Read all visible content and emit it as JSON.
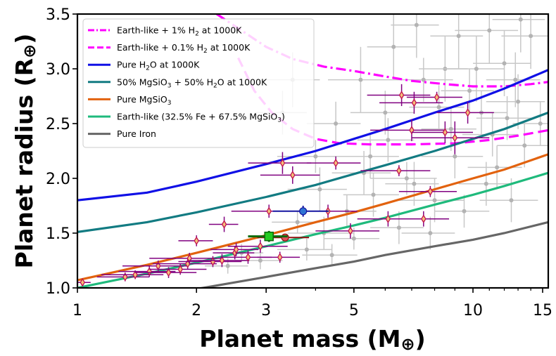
{
  "chart_data": {
    "type": "scatter",
    "xlabel": "Planet mass (M",
    "xlabel_symbol": "⊕",
    "xlabel_close": ")",
    "ylabel": "Planet radius (R",
    "ylabel_symbol": "⊕",
    "ylabel_close": ")",
    "xscale": "log",
    "xlim": [
      1.0,
      15.5
    ],
    "ylim": [
      1.0,
      3.5
    ],
    "xticks": [
      {
        "v": 1,
        "label": "1"
      },
      {
        "v": 2,
        "label": "2"
      },
      {
        "v": 3,
        "label": "3"
      },
      {
        "v": 5,
        "label": "5"
      },
      {
        "v": 10,
        "label": "10"
      },
      {
        "v": 15,
        "label": "15"
      }
    ],
    "yticks": [
      {
        "v": 1.0,
        "label": "1.0"
      },
      {
        "v": 1.5,
        "label": "1.5"
      },
      {
        "v": 2.0,
        "label": "2.0"
      },
      {
        "v": 2.5,
        "label": "2.5"
      },
      {
        "v": 3.0,
        "label": "3.0"
      },
      {
        "v": 3.5,
        "label": "3.5"
      }
    ],
    "legend_position": "top-left",
    "curves": [
      {
        "name": "Earth-like + 1% H2 at 1000K",
        "label_parts": [
          "Earth-like + 1% H",
          "2",
          " at 1000K"
        ],
        "color": "#ff00ff",
        "dash": "dashdot",
        "points": [
          [
            2.25,
            3.5
          ],
          [
            2.6,
            3.35
          ],
          [
            3.0,
            3.2
          ],
          [
            3.5,
            3.09
          ],
          [
            4.2,
            3.02
          ],
          [
            5.0,
            2.98
          ],
          [
            6.0,
            2.93
          ],
          [
            7.0,
            2.89
          ],
          [
            8.5,
            2.86
          ],
          [
            10.0,
            2.84
          ],
          [
            12.0,
            2.84
          ],
          [
            14.0,
            2.86
          ],
          [
            15.5,
            2.88
          ]
        ]
      },
      {
        "name": "Earth-like + 0.1% H2 at 1000K",
        "label_parts": [
          "Earth-like + 0.1% H",
          "2",
          " at 1000K"
        ],
        "color": "#ff00ff",
        "dash": "dashed",
        "points": [
          [
            2.55,
            3.1
          ],
          [
            2.8,
            2.8
          ],
          [
            3.1,
            2.6
          ],
          [
            3.5,
            2.45
          ],
          [
            4.0,
            2.36
          ],
          [
            4.6,
            2.32
          ],
          [
            5.5,
            2.31
          ],
          [
            7.0,
            2.31
          ],
          [
            9.0,
            2.32
          ],
          [
            11.0,
            2.35
          ],
          [
            13.0,
            2.39
          ],
          [
            15.5,
            2.44
          ]
        ]
      },
      {
        "name": "Pure H2O at 1000K",
        "label_parts": [
          "Pure H",
          "2",
          "O at 1000K"
        ],
        "color": "#1010e6",
        "dash": "solid",
        "points": [
          [
            1.0,
            1.8
          ],
          [
            1.5,
            1.87
          ],
          [
            2.0,
            1.97
          ],
          [
            3.0,
            2.13
          ],
          [
            4.0,
            2.25
          ],
          [
            5.0,
            2.36
          ],
          [
            6.0,
            2.45
          ],
          [
            8.0,
            2.6
          ],
          [
            10.0,
            2.71
          ],
          [
            12.0,
            2.82
          ],
          [
            15.5,
            2.99
          ]
        ]
      },
      {
        "name": "50% MgSiO3 + 50% H2O at 1000K",
        "label_parts": [
          "50% MgSiO",
          "3",
          " + 50% H",
          "2",
          "O at 1000K"
        ],
        "color": "#127b82",
        "dash": "solid",
        "points": [
          [
            1.0,
            1.51
          ],
          [
            1.5,
            1.6
          ],
          [
            2.0,
            1.69
          ],
          [
            3.0,
            1.83
          ],
          [
            4.0,
            1.94
          ],
          [
            5.0,
            2.04
          ],
          [
            6.0,
            2.12
          ],
          [
            8.0,
            2.25
          ],
          [
            10.0,
            2.36
          ],
          [
            12.0,
            2.45
          ],
          [
            15.5,
            2.6
          ]
        ]
      },
      {
        "name": "Pure MgSiO3",
        "label_parts": [
          "Pure MgSiO",
          "3"
        ],
        "color": "#e2620e",
        "dash": "solid",
        "points": [
          [
            1.0,
            1.07
          ],
          [
            1.5,
            1.21
          ],
          [
            2.0,
            1.32
          ],
          [
            3.0,
            1.48
          ],
          [
            4.0,
            1.6
          ],
          [
            5.0,
            1.69
          ],
          [
            6.0,
            1.77
          ],
          [
            8.0,
            1.9
          ],
          [
            10.0,
            2.0
          ],
          [
            12.0,
            2.08
          ],
          [
            15.5,
            2.22
          ]
        ]
      },
      {
        "name": "Earth-like (32.5% Fe + 67.5% MgSiO3)",
        "label_parts": [
          "Earth-like (32.5% Fe + 67.5% MgSiO",
          "3",
          ")"
        ],
        "color": "#1fba7c",
        "dash": "solid",
        "points": [
          [
            1.0,
            1.0
          ],
          [
            1.5,
            1.13
          ],
          [
            2.0,
            1.23
          ],
          [
            3.0,
            1.38
          ],
          [
            4.0,
            1.49
          ],
          [
            5.0,
            1.57
          ],
          [
            6.0,
            1.64
          ],
          [
            8.0,
            1.76
          ],
          [
            10.0,
            1.85
          ],
          [
            12.0,
            1.93
          ],
          [
            15.5,
            2.05
          ]
        ]
      },
      {
        "name": "Pure Iron",
        "label_parts": [
          "Pure Iron"
        ],
        "color": "#666666",
        "dash": "solid",
        "points": [
          [
            1.75,
            0.95
          ],
          [
            2.0,
            0.99
          ],
          [
            3.0,
            1.1
          ],
          [
            4.0,
            1.18
          ],
          [
            5.0,
            1.24
          ],
          [
            6.0,
            1.3
          ],
          [
            8.0,
            1.38
          ],
          [
            10.0,
            1.44
          ],
          [
            12.0,
            1.5
          ],
          [
            15.5,
            1.6
          ]
        ]
      }
    ],
    "background_points": [
      [
        3.3,
        2.6,
        0.5,
        0.2
      ],
      [
        3.5,
        2.9,
        0.6,
        0.25
      ],
      [
        4.0,
        2.2,
        0.8,
        0.15
      ],
      [
        4.5,
        2.5,
        0.7,
        0.2
      ],
      [
        5.2,
        2.9,
        0.9,
        0.3
      ],
      [
        5.5,
        2.2,
        1.0,
        0.2
      ],
      [
        6.0,
        2.6,
        1.1,
        0.2
      ],
      [
        6.3,
        3.2,
        0.9,
        0.3
      ],
      [
        6.8,
        2.0,
        1.3,
        0.15
      ],
      [
        7.2,
        3.4,
        1.0,
        0.3
      ],
      [
        7.5,
        2.9,
        1.4,
        0.2
      ],
      [
        8.0,
        1.8,
        1.5,
        0.2
      ],
      [
        8.5,
        3.0,
        1.2,
        0.3
      ],
      [
        9.0,
        2.2,
        1.6,
        0.2
      ],
      [
        9.5,
        1.7,
        1.5,
        0.15
      ],
      [
        10.2,
        3.0,
        1.8,
        0.3
      ],
      [
        10.5,
        2.6,
        1.7,
        0.2
      ],
      [
        11.0,
        3.35,
        2.0,
        0.3
      ],
      [
        11.5,
        2.1,
        1.8,
        0.2
      ],
      [
        12.0,
        3.05,
        2.0,
        0.3
      ],
      [
        12.5,
        1.8,
        2.1,
        0.2
      ],
      [
        13.0,
        2.7,
        2.2,
        0.25
      ],
      [
        13.5,
        2.3,
        2.0,
        0.2
      ],
      [
        14.0,
        3.3,
        2.2,
        0.3
      ],
      [
        4.2,
        1.5,
        0.8,
        0.15
      ],
      [
        4.8,
        1.7,
        0.9,
        0.15
      ],
      [
        5.6,
        1.85,
        0.9,
        0.2
      ],
      [
        6.5,
        1.55,
        1.0,
        0.15
      ],
      [
        7.8,
        1.5,
        1.2,
        0.15
      ],
      [
        3.8,
        1.35,
        0.6,
        0.1
      ],
      [
        4.4,
        1.3,
        0.7,
        0.1
      ],
      [
        5.0,
        1.45,
        0.8,
        0.1
      ],
      [
        9.8,
        2.8,
        1.5,
        0.2
      ],
      [
        8.8,
        2.45,
        1.4,
        0.2
      ],
      [
        12.8,
        2.9,
        2.0,
        0.25
      ],
      [
        11.2,
        2.4,
        1.8,
        0.2
      ],
      [
        14.8,
        2.5,
        2.2,
        0.2
      ],
      [
        6.1,
        2.35,
        1.0,
        0.2
      ],
      [
        7.1,
        1.95,
        1.1,
        0.2
      ],
      [
        10.8,
        1.95,
        1.6,
        0.2
      ],
      [
        3.6,
        1.6,
        0.5,
        0.1
      ],
      [
        2.9,
        1.25,
        0.4,
        0.08
      ],
      [
        2.6,
        1.32,
        0.35,
        0.08
      ],
      [
        2.4,
        1.2,
        0.3,
        0.07
      ],
      [
        9.2,
        3.3,
        1.4,
        0.3
      ],
      [
        13.2,
        3.45,
        2.0,
        0.3
      ],
      [
        12.2,
        2.55,
        2.0,
        0.2
      ],
      [
        8.2,
        2.65,
        1.3,
        0.2
      ],
      [
        5.3,
        2.05,
        0.9,
        0.2
      ],
      [
        4.1,
        1.9,
        0.7,
        0.2
      ]
    ],
    "highlighted_points": [
      [
        1.03,
        1.05,
        0.05,
        0.02
      ],
      [
        1.32,
        1.1,
        0.2,
        0.04
      ],
      [
        1.4,
        1.12,
        0.25,
        0.04
      ],
      [
        1.52,
        1.15,
        0.25,
        0.05
      ],
      [
        1.6,
        1.2,
        0.3,
        0.05
      ],
      [
        1.7,
        1.14,
        0.3,
        0.05
      ],
      [
        1.82,
        1.17,
        0.3,
        0.05
      ],
      [
        1.9,
        1.22,
        0.35,
        0.05
      ],
      [
        1.92,
        1.27,
        0.4,
        0.05
      ],
      [
        2.0,
        1.43,
        0.2,
        0.05
      ],
      [
        2.2,
        1.24,
        0.4,
        0.05
      ],
      [
        2.32,
        1.25,
        0.4,
        0.06
      ],
      [
        2.35,
        1.58,
        0.2,
        0.07
      ],
      [
        2.5,
        1.32,
        0.3,
        0.06
      ],
      [
        2.52,
        1.35,
        0.35,
        0.06
      ],
      [
        2.7,
        1.28,
        0.4,
        0.06
      ],
      [
        2.9,
        1.38,
        0.5,
        0.06
      ],
      [
        3.05,
        1.7,
        0.6,
        0.06
      ],
      [
        3.25,
        1.28,
        0.4,
        0.05
      ],
      [
        3.3,
        2.14,
        0.6,
        0.1
      ],
      [
        3.5,
        2.03,
        0.6,
        0.08
      ],
      [
        4.3,
        1.7,
        0.8,
        0.06
      ],
      [
        4.5,
        2.14,
        0.7,
        0.06
      ],
      [
        4.9,
        1.52,
        0.9,
        0.07
      ],
      [
        6.1,
        1.63,
        1.0,
        0.07
      ],
      [
        6.5,
        2.07,
        1.3,
        0.05
      ],
      [
        6.6,
        2.76,
        1.2,
        0.1
      ],
      [
        7.0,
        2.44,
        1.5,
        0.1
      ],
      [
        7.1,
        2.69,
        1.3,
        0.1
      ],
      [
        7.5,
        1.63,
        1.2,
        0.07
      ],
      [
        7.8,
        1.88,
        1.3,
        0.05
      ],
      [
        8.1,
        2.74,
        1.3,
        0.05
      ],
      [
        8.5,
        2.42,
        1.5,
        0.1
      ],
      [
        9.0,
        2.37,
        2.0,
        0.15
      ],
      [
        9.7,
        2.6,
        1.6,
        0.1
      ]
    ],
    "special_points": [
      {
        "name": "blue-point",
        "x": 3.72,
        "y": 1.7,
        "xerr": 0.6,
        "yerr": 0.05,
        "color": "#2f73d3",
        "edge": "#1414a0",
        "shape": "circle"
      },
      {
        "name": "red-point",
        "x": 3.35,
        "y": 1.46,
        "xerr": 0.5,
        "yerr": 0.03,
        "color": "#e0505a",
        "edge": "#901010",
        "shape": "circle"
      },
      {
        "name": "green-point",
        "x": 3.05,
        "y": 1.47,
        "xerr": 0.35,
        "yerr": 0.05,
        "color": "#22cc22",
        "edge": "#0a6a0a",
        "shape": "square"
      }
    ]
  }
}
